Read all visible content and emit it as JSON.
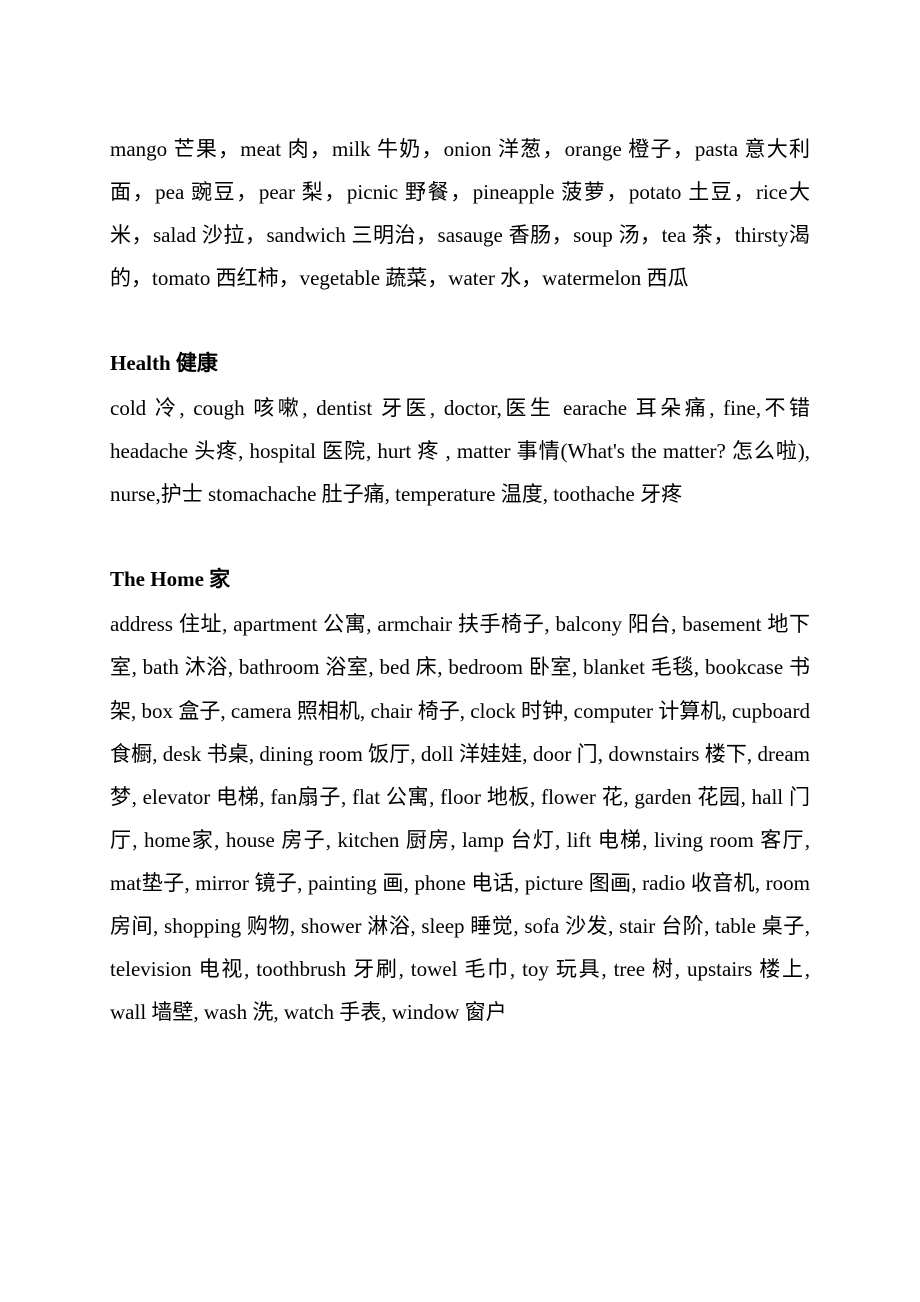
{
  "sections": [
    {
      "heading_en": "",
      "heading_zh": "",
      "content": "mango 芒果，meat 肉，milk 牛奶，onion 洋葱，orange 橙子，pasta 意大利面，pea 豌豆，pear 梨，picnic 野餐，pineapple 菠萝，potato 土豆，rice大米，salad 沙拉，sandwich 三明治，sasauge 香肠，soup 汤，tea 茶，thirsty渴的，tomato 西红柿，vegetable 蔬菜，water 水，watermelon 西瓜"
    },
    {
      "heading_en": "Health",
      "heading_zh": "健康",
      "content": "cold 冷, cough 咳嗽, dentist 牙医, doctor,医生  earache 耳朵痛, fine,不错 headache 头疼, hospital  医院, hurt 疼  , matter  事情(What's the matter?  怎么啦), nurse,护士  stomachache 肚子痛, temperature 温度, toothache 牙疼"
    },
    {
      "heading_en": "The Home",
      "heading_zh": "家",
      "content": "address 住址,   apartment 公寓,   armchair 扶手椅子,   balcony 阳台, basement 地下室,   bath 沐浴,   bathroom 浴室,   bed 床, bedroom 卧室, blanket 毛毯,   bookcase 书架,   box 盒子,   camera 照相机,   chair 椅子, clock 时钟,   computer 计算机,   cupboard 食橱, desk 书桌, dining room 饭厅, doll 洋娃娃,   door 门,   downstairs 楼下,   dream 梦,   elevator 电梯, fan扇子, flat 公寓,   floor 地板,   flower 花,   garden 花园,   hall 门厅,   home家,   house 房子, kitchen 厨房, lamp 台灯, lift 电梯, living room 客厅, mat垫子, mirror 镜子, painting 画, phone 电话, picture 图画, radio 收音机, room 房间, shopping 购物, shower 淋浴, sleep 睡觉, sofa 沙发, stair 台阶, table 桌子, television 电视, toothbrush 牙刷, towel 毛巾, toy 玩具, tree 树, upstairs 楼上, wall 墙壁, wash 洗, watch 手表, window 窗户"
    }
  ]
}
